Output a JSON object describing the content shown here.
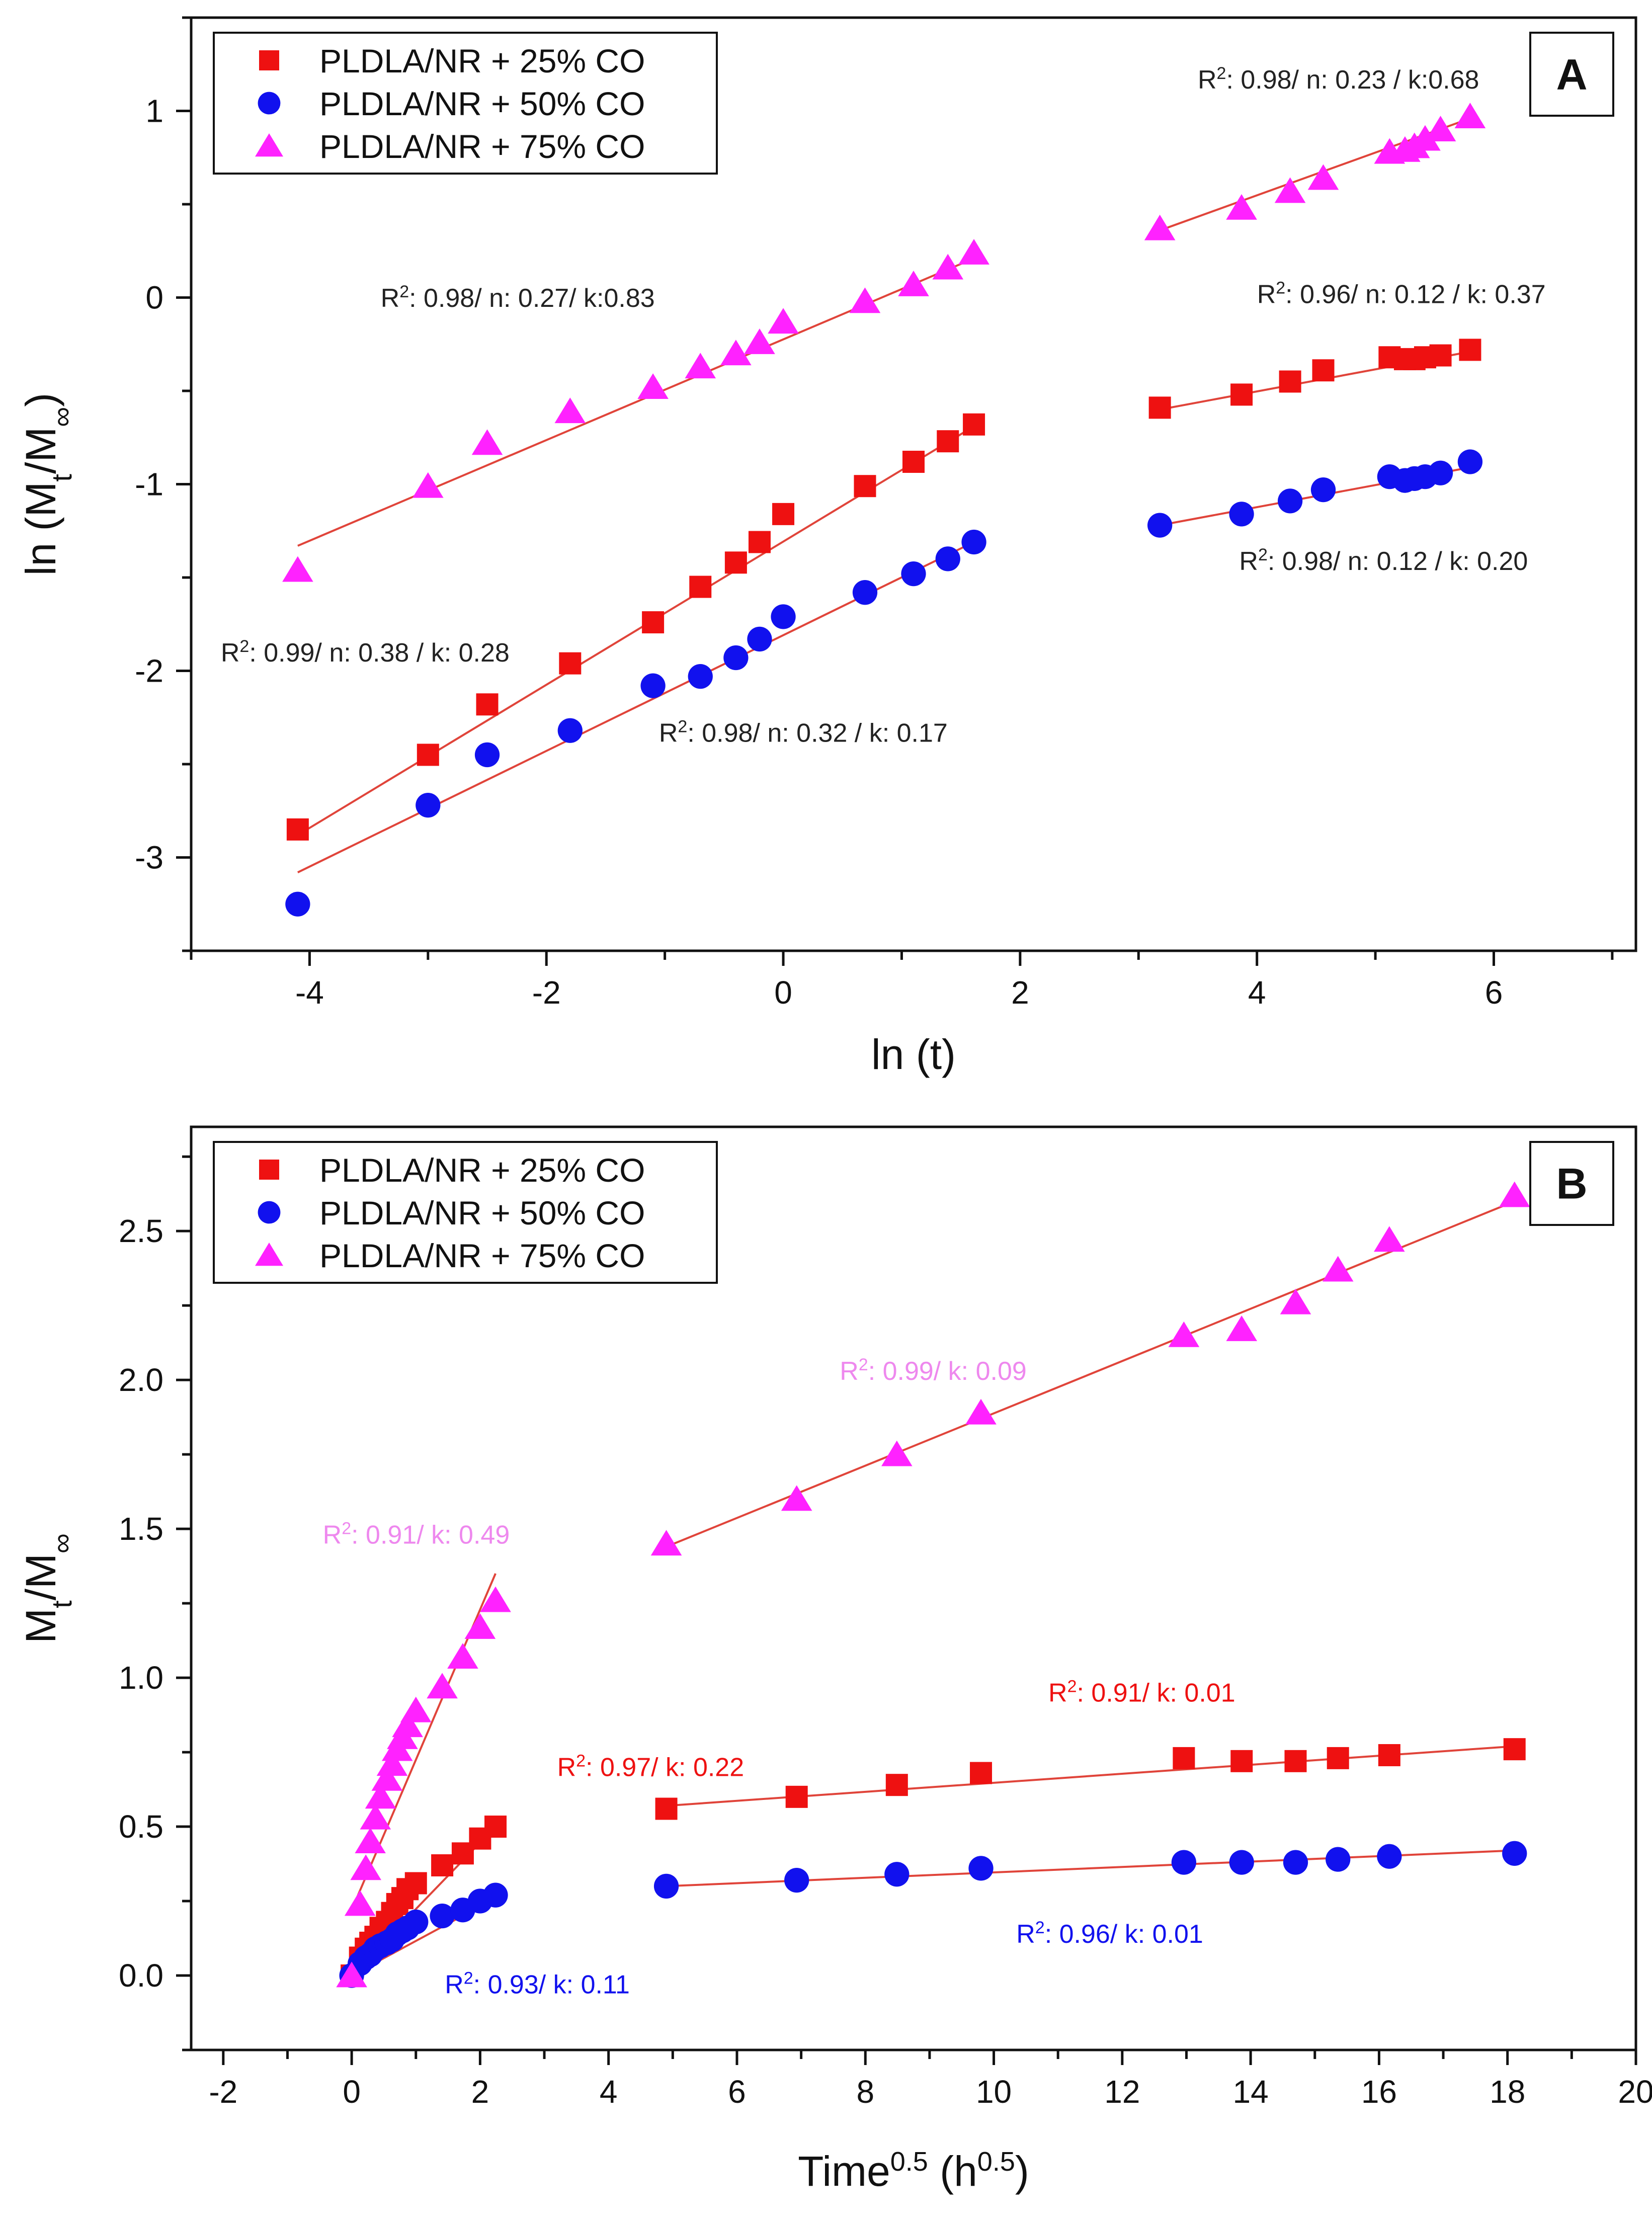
{
  "colors": {
    "s25": "#ee1111",
    "s50": "#1111ee",
    "s75": "#ff22ff",
    "fit": "#e0443a",
    "annot_b75": "#ee88ee"
  },
  "chart_data": [
    {
      "type": "scatter",
      "panel_label": "A",
      "title": "",
      "xlabel": "ln (t)",
      "ylabel_parts": [
        "ln (M",
        "t",
        "/M",
        "∞",
        ")"
      ],
      "xlim": [
        -5,
        7.2
      ],
      "ylim": [
        -3.5,
        1.5
      ],
      "xticks": [
        -4,
        -2,
        0,
        2,
        4,
        6
      ],
      "yticks": [
        -3,
        -2,
        -1,
        0,
        1
      ],
      "legend": {
        "position": "top-left",
        "entries": [
          "PLDLA/NR + 25% CO",
          "PLDLA/NR + 50% CO",
          "PLDLA/NR + 75% CO"
        ]
      },
      "series": [
        {
          "name": "PLDLA/NR + 25% CO",
          "marker": "square",
          "color_key": "s25",
          "x": [
            -4.1,
            -3.0,
            -2.5,
            -1.8,
            -1.1,
            -0.7,
            -0.4,
            -0.2,
            0.0,
            0.69,
            1.1,
            1.39,
            1.61,
            3.18,
            3.87,
            4.28,
            4.56,
            5.12,
            5.25,
            5.33,
            5.42,
            5.55,
            5.8
          ],
          "y": [
            -2.85,
            -2.45,
            -2.18,
            -1.96,
            -1.74,
            -1.55,
            -1.42,
            -1.31,
            -1.16,
            -1.01,
            -0.88,
            -0.77,
            -0.68,
            -0.59,
            -0.52,
            -0.45,
            -0.39,
            -0.32,
            -0.33,
            -0.33,
            -0.32,
            -0.31,
            -0.28
          ]
        },
        {
          "name": "PLDLA/NR + 50% CO",
          "marker": "circle",
          "color_key": "s50",
          "x": [
            -4.1,
            -3.0,
            -2.5,
            -1.8,
            -1.1,
            -0.7,
            -0.4,
            -0.2,
            0.0,
            0.69,
            1.1,
            1.39,
            1.61,
            3.18,
            3.87,
            4.28,
            4.56,
            5.12,
            5.25,
            5.33,
            5.42,
            5.55,
            5.8
          ],
          "y": [
            -3.25,
            -2.72,
            -2.45,
            -2.32,
            -2.08,
            -2.03,
            -1.93,
            -1.83,
            -1.71,
            -1.58,
            -1.48,
            -1.4,
            -1.31,
            -1.22,
            -1.16,
            -1.09,
            -1.03,
            -0.96,
            -0.98,
            -0.97,
            -0.96,
            -0.94,
            -0.88
          ]
        },
        {
          "name": "PLDLA/NR + 75% CO",
          "marker": "triangle",
          "color_key": "s75",
          "x": [
            -4.1,
            -3.0,
            -2.5,
            -1.8,
            -1.1,
            -0.7,
            -0.4,
            -0.2,
            0.0,
            0.69,
            1.1,
            1.39,
            1.61,
            3.18,
            3.87,
            4.28,
            4.56,
            5.12,
            5.25,
            5.33,
            5.42,
            5.55,
            5.8
          ],
          "y": [
            -1.46,
            -1.01,
            -0.78,
            -0.61,
            -0.48,
            -0.37,
            -0.3,
            -0.24,
            -0.13,
            -0.02,
            0.07,
            0.16,
            0.24,
            0.37,
            0.48,
            0.57,
            0.64,
            0.78,
            0.79,
            0.81,
            0.85,
            0.9,
            0.97
          ]
        }
      ],
      "fits": [
        {
          "color_key": "fit",
          "x": [
            -4.1,
            1.61
          ],
          "y": [
            -2.88,
            -0.69
          ]
        },
        {
          "color_key": "fit",
          "x": [
            -4.1,
            1.61
          ],
          "y": [
            -3.08,
            -1.31
          ]
        },
        {
          "color_key": "fit",
          "x": [
            -4.1,
            1.61
          ],
          "y": [
            -1.33,
            0.21
          ]
        },
        {
          "color_key": "fit",
          "x": [
            3.18,
            5.8
          ],
          "y": [
            -0.6,
            -0.29
          ]
        },
        {
          "color_key": "fit",
          "x": [
            3.18,
            5.8
          ],
          "y": [
            -1.22,
            -0.91
          ]
        },
        {
          "color_key": "fit",
          "x": [
            3.18,
            5.8
          ],
          "y": [
            0.36,
            0.96
          ]
        }
      ],
      "annotations": [
        {
          "pre": "R",
          "sup": "2",
          "post": ": 0.98/ n: 0.23 / k:0.68",
          "color": "#222222",
          "x": 3.5,
          "y": 1.12
        },
        {
          "pre": "R",
          "sup": "2",
          "post": ": 0.98/ n: 0.27/ k:0.83",
          "color": "#222222",
          "x": -3.4,
          "y": -0.05
        },
        {
          "pre": "R",
          "sup": "2",
          "post": ": 0.96/ n: 0.12 / k: 0.37",
          "color": "#222222",
          "x": 4.0,
          "y": -0.03
        },
        {
          "pre": "R",
          "sup": "2",
          "post": ": 0.98/ n: 0.12 / k: 0.20",
          "color": "#222222",
          "x": 3.85,
          "y": -1.46
        },
        {
          "pre": "R",
          "sup": "2",
          "post": ": 0.99/ n: 0.38 / k: 0.28",
          "color": "#222222",
          "x": -4.75,
          "y": -1.95
        },
        {
          "pre": "R",
          "sup": "2",
          "post": ": 0.98/ n: 0.32 / k: 0.17",
          "color": "#222222",
          "x": -1.05,
          "y": -2.38
        }
      ]
    },
    {
      "type": "scatter",
      "panel_label": "B",
      "title": "",
      "xlabel_parts": [
        "Time",
        "0.5",
        " (h",
        "0.5",
        ")"
      ],
      "ylabel_parts": [
        "M",
        "t",
        "/M",
        "∞"
      ],
      "xlim": [
        -2.5,
        20
      ],
      "ylim": [
        -0.25,
        2.85
      ],
      "xticks": [
        -2,
        0,
        2,
        4,
        6,
        8,
        10,
        12,
        14,
        16,
        18,
        20
      ],
      "yticks": [
        0.0,
        0.5,
        1.0,
        1.5,
        2.0,
        2.5
      ],
      "legend": {
        "position": "top-left",
        "entries": [
          "PLDLA/NR + 25% CO",
          "PLDLA/NR + 50% CO",
          "PLDLA/NR + 75% CO"
        ]
      },
      "series": [
        {
          "name": "PLDLA/NR + 25% CO",
          "marker": "square",
          "color_key": "s25",
          "x": [
            0,
            0.13,
            0.22,
            0.29,
            0.37,
            0.45,
            0.55,
            0.63,
            0.71,
            0.79,
            0.87,
            1.0,
            1.41,
            1.73,
            2.0,
            2.24,
            4.9,
            6.93,
            8.49,
            9.8,
            12.96,
            13.86,
            14.7,
            15.36,
            16.16,
            18.11
          ],
          "y": [
            0,
            0.06,
            0.09,
            0.11,
            0.13,
            0.16,
            0.18,
            0.21,
            0.24,
            0.26,
            0.29,
            0.31,
            0.37,
            0.41,
            0.46,
            0.5,
            0.56,
            0.6,
            0.64,
            0.68,
            0.73,
            0.72,
            0.72,
            0.73,
            0.74,
            0.76
          ]
        },
        {
          "name": "PLDLA/NR + 50% CO",
          "marker": "circle",
          "color_key": "s50",
          "x": [
            0,
            0.13,
            0.22,
            0.29,
            0.37,
            0.45,
            0.55,
            0.63,
            0.71,
            0.79,
            0.87,
            1.0,
            1.41,
            1.73,
            2.0,
            2.24,
            4.9,
            6.93,
            8.49,
            9.8,
            12.96,
            13.86,
            14.7,
            15.36,
            16.16,
            18.11
          ],
          "y": [
            0,
            0.04,
            0.06,
            0.07,
            0.09,
            0.1,
            0.11,
            0.12,
            0.14,
            0.15,
            0.16,
            0.18,
            0.2,
            0.22,
            0.25,
            0.27,
            0.3,
            0.32,
            0.34,
            0.36,
            0.38,
            0.38,
            0.38,
            0.39,
            0.4,
            0.41
          ]
        },
        {
          "name": "PLDLA/NR + 75% CO",
          "marker": "triangle",
          "color_key": "s75",
          "x": [
            0,
            0.13,
            0.22,
            0.29,
            0.37,
            0.45,
            0.55,
            0.63,
            0.71,
            0.79,
            0.87,
            1.0,
            1.41,
            1.73,
            2.0,
            2.24,
            4.9,
            6.93,
            8.49,
            9.8,
            12.96,
            13.86,
            14.7,
            15.36,
            16.16,
            18.11
          ],
          "y": [
            0,
            0.24,
            0.36,
            0.45,
            0.53,
            0.6,
            0.66,
            0.71,
            0.76,
            0.8,
            0.84,
            0.89,
            0.97,
            1.07,
            1.17,
            1.26,
            1.45,
            1.6,
            1.75,
            1.89,
            2.15,
            2.17,
            2.26,
            2.37,
            2.47,
            2.62
          ]
        }
      ],
      "fits": [
        {
          "color_key": "fit",
          "x": [
            0,
            2.24
          ],
          "y": [
            0.0,
            0.5
          ]
        },
        {
          "color_key": "fit",
          "x": [
            0,
            2.24
          ],
          "y": [
            0.0,
            0.26
          ]
        },
        {
          "color_key": "fit",
          "x": [
            0,
            2.24
          ],
          "y": [
            0.22,
            1.35
          ]
        },
        {
          "color_key": "fit",
          "x": [
            4.9,
            18.11
          ],
          "y": [
            0.57,
            0.77
          ]
        },
        {
          "color_key": "fit",
          "x": [
            4.9,
            18.11
          ],
          "y": [
            0.3,
            0.42
          ]
        },
        {
          "color_key": "fit",
          "x": [
            4.9,
            18.11
          ],
          "y": [
            1.44,
            2.6
          ]
        }
      ],
      "annotations": [
        {
          "pre": "R",
          "sup": "2",
          "post": ": 0.99/ k: 0.09",
          "color": "#ee88ee",
          "x": 7.6,
          "y": 2.0
        },
        {
          "pre": "R",
          "sup": "2",
          "post": ": 0.91/ k: 0.49",
          "color": "#ee88ee",
          "x": -0.45,
          "y": 1.45
        },
        {
          "pre": "R",
          "sup": "2",
          "post": ": 0.91/ k: 0.01",
          "color": "#ee1111",
          "x": 10.85,
          "y": 0.92
        },
        {
          "pre": "R",
          "sup": "2",
          "post": ": 0.97/ k: 0.22",
          "color": "#ee1111",
          "x": 3.2,
          "y": 0.67
        },
        {
          "pre": "R",
          "sup": "2",
          "post": ": 0.96/ k: 0.01",
          "color": "#1111ee",
          "x": 10.35,
          "y": 0.11
        },
        {
          "pre": "R",
          "sup": "2",
          "post": ": 0.93/ k: 0.11",
          "color": "#1111ee",
          "x": 1.45,
          "y": -0.06
        }
      ]
    }
  ]
}
